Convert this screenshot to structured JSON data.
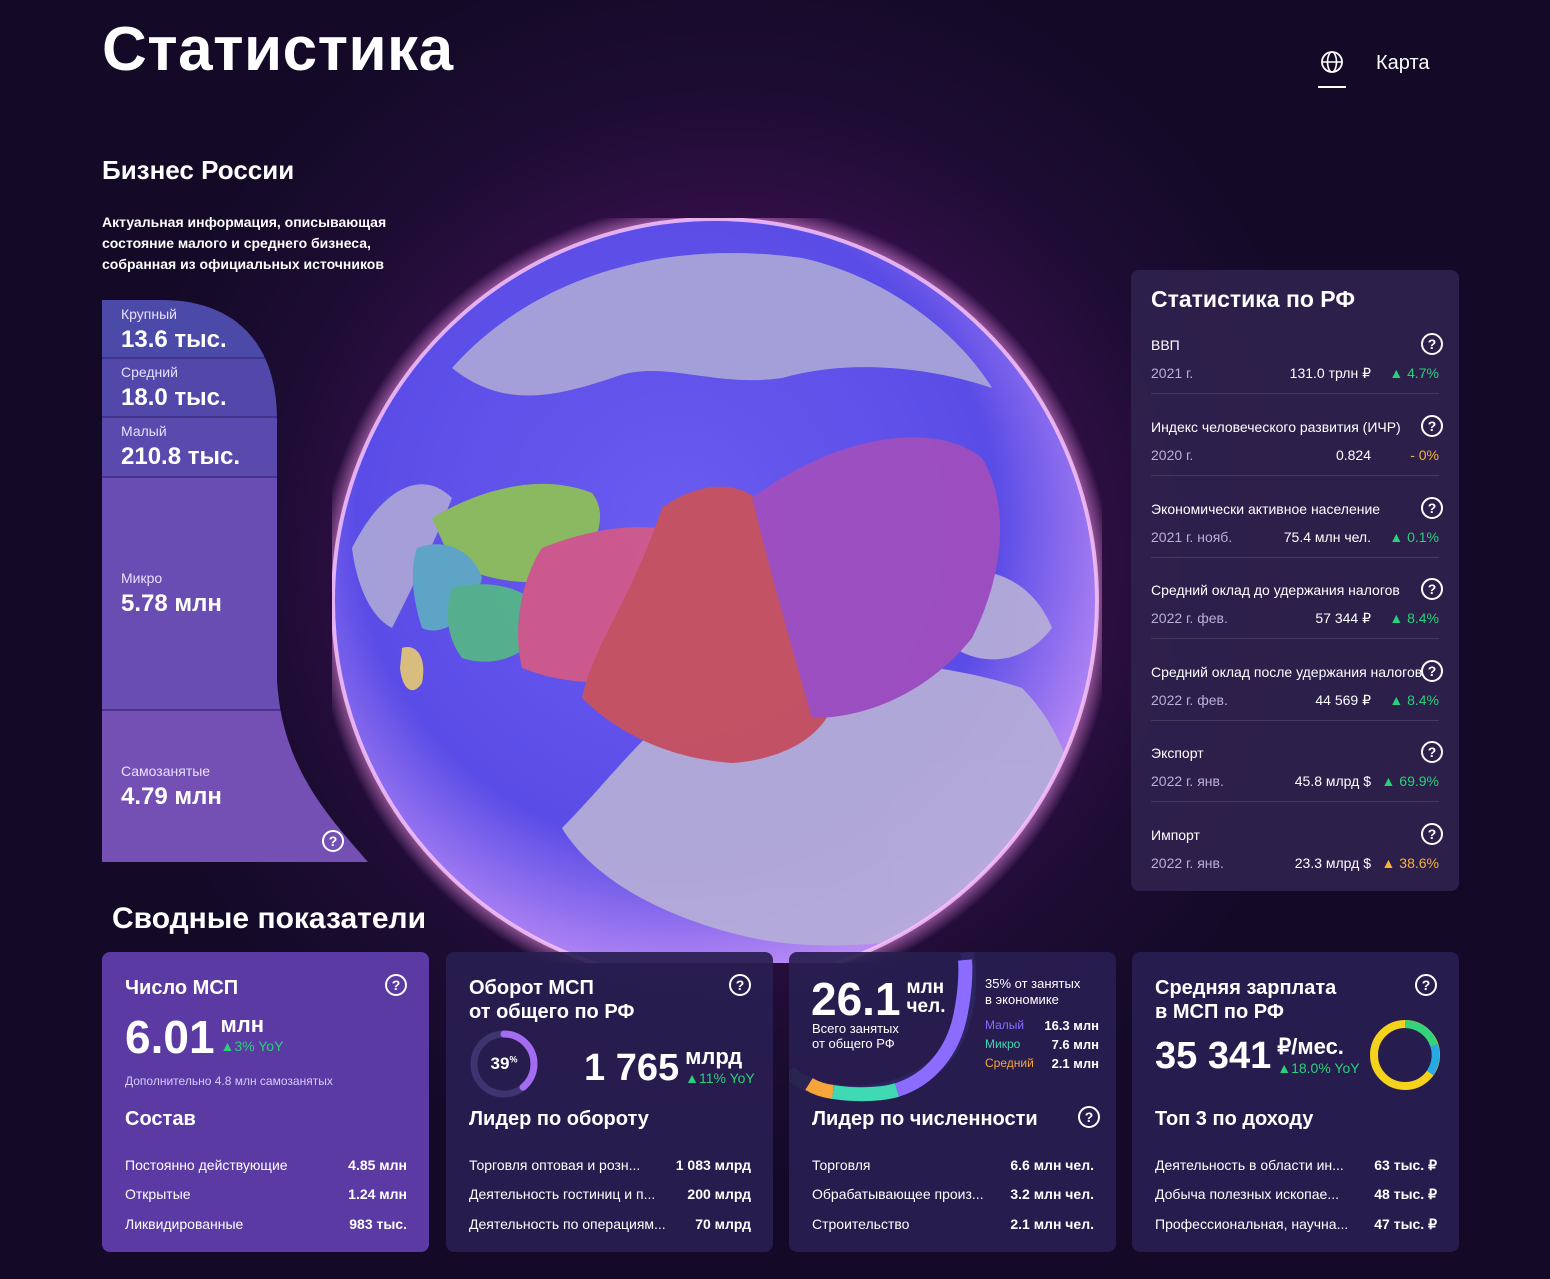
{
  "header": {
    "title": "Статистика",
    "nav_map": "Карта"
  },
  "intro": {
    "title": "Бизнес России",
    "description": "Актуальная информация, описывающая состояние малого и среднего бизнеса, собранная из официальных источников"
  },
  "funnel": [
    {
      "label": "Крупный",
      "value": "13.6 тыс."
    },
    {
      "label": "Средний",
      "value": "18.0 тыс."
    },
    {
      "label": "Малый",
      "value": "210.8 тыс."
    },
    {
      "label": "Микро",
      "value": "5.78 млн"
    },
    {
      "label": "Самозанятые",
      "value": "4.79 млн"
    }
  ],
  "rf_stats": {
    "title": "Статистика по РФ",
    "rows": [
      {
        "name": "ВВП",
        "date": "2021 г.",
        "value": "131.0 трлн ₽",
        "delta": "▲ 4.7%",
        "trend": "up"
      },
      {
        "name": "Индекс человеческого развития (ИЧР)",
        "date": "2020 г.",
        "value": "0.824",
        "delta": "- 0%",
        "trend": "flat"
      },
      {
        "name": "Экономически активное население",
        "date": "2021 г. нояб.",
        "value": "75.4 млн чел.",
        "delta": "▲ 0.1%",
        "trend": "up"
      },
      {
        "name": "Средний оклад до удержания налогов",
        "date": "2022 г. фев.",
        "value": "57 344 ₽",
        "delta": "▲ 8.4%",
        "trend": "up"
      },
      {
        "name": "Средний оклад после удержания налогов",
        "date": "2022 г. фев.",
        "value": "44 569 ₽",
        "delta": "▲ 8.4%",
        "trend": "up"
      },
      {
        "name": "Экспорт",
        "date": "2022 г. янв.",
        "value": "45.8 млрд $",
        "delta": "▲ 69.9%",
        "trend": "up"
      },
      {
        "name": "Импорт",
        "date": "2022 г. янв.",
        "value": "23.3 млрд $",
        "delta": "▲ 38.6%",
        "trend": "flat"
      }
    ]
  },
  "summary": {
    "title": "Сводные показатели",
    "card1": {
      "title": "Число МСП",
      "value": "6.01",
      "unit": "млн",
      "yoy": "▲3% YoY",
      "note": "Дополнительно 4.8 млн самозанятых",
      "sub": "Состав",
      "rows": [
        {
          "label": "Постоянно действующие",
          "value": "4.85 млн"
        },
        {
          "label": "Открытые",
          "value": "1.24 млн"
        },
        {
          "label": "Ликвидированные",
          "value": "983 тыс."
        }
      ]
    },
    "card2": {
      "title1": "Оборот МСП",
      "title2": "от общего по РФ",
      "percent": "39",
      "percent_sign": "%",
      "percent_value": 0.39,
      "value": "1 765",
      "unit": "млрд",
      "yoy": "▲11% YoY",
      "sub": "Лидер по обороту",
      "rows": [
        {
          "label": "Торговля оптовая и розн...",
          "value": "1 083 млрд"
        },
        {
          "label": "Деятельность гостиниц и п...",
          "value": "200 млрд"
        },
        {
          "label": "Деятельность по операциям...",
          "value": "70 млрд"
        }
      ]
    },
    "card3": {
      "value": "26.1",
      "unit1": "млн",
      "unit2": "чел.",
      "caption1": "Всего занятых",
      "caption2": "от общего РФ",
      "share1": "35% от занятых",
      "share2": "в экономике",
      "breakdown": [
        {
          "label": "Малый",
          "value": "16.3 млн",
          "color": "#8b6cff"
        },
        {
          "label": "Микро",
          "value": "7.6 млн",
          "color": "#3fd9b4"
        },
        {
          "label": "Средний",
          "value": "2.1 млн",
          "color": "#f7a53b"
        }
      ],
      "sub": "Лидер по численности",
      "rows": [
        {
          "label": "Торговля",
          "value": "6.6 млн чел."
        },
        {
          "label": "Обрабатывающее произ...",
          "value": "3.2 млн чел."
        },
        {
          "label": "Строительство",
          "value": "2.1 млн чел."
        }
      ]
    },
    "card4": {
      "title1": "Средняя зарплата",
      "title2": "в МСП по РФ",
      "value": "35 341",
      "unit": "₽/мес.",
      "yoy": "▲18.0% YoY",
      "sub": "Топ 3 по доходу",
      "rows": [
        {
          "label": "Деятельность в области ин...",
          "value": "63 тыс. ₽"
        },
        {
          "label": "Добыча полезных ископае...",
          "value": "48 тыс. ₽"
        },
        {
          "label": "Профессиональная, научна...",
          "value": "47 тыс. ₽"
        }
      ]
    }
  }
}
